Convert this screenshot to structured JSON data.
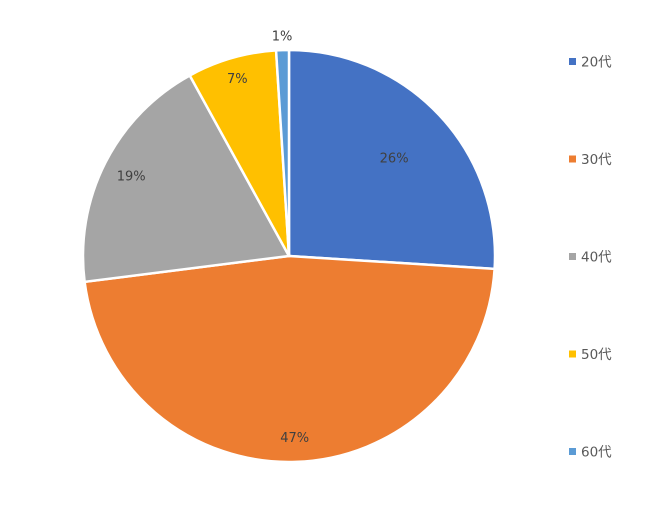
{
  "chart_data": {
    "type": "pie",
    "title": "",
    "categories": [
      "20代",
      "30代",
      "40代",
      "50代",
      "60代"
    ],
    "values": [
      26,
      47,
      19,
      7,
      1
    ],
    "data_labels": [
      "26%",
      "47%",
      "19%",
      "7%",
      "1%"
    ],
    "colors": [
      "#4472C4",
      "#ED7D31",
      "#A5A5A5",
      "#FFC000",
      "#5B9BD5"
    ],
    "start_angle": "top (12 o'clock)",
    "direction": "clockwise",
    "legend": "right"
  }
}
